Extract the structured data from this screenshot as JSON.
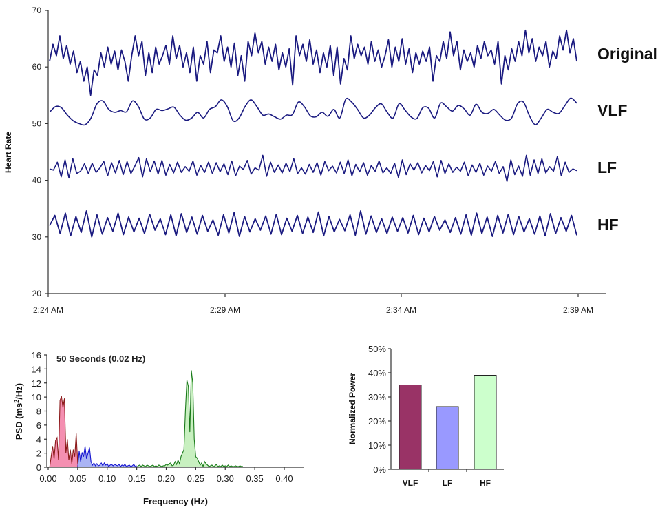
{
  "chart_data": [
    {
      "type": "line",
      "ylabel": "Heart Rate",
      "ylim": [
        20,
        70
      ],
      "yticks": [
        "20",
        "30",
        "40",
        "50",
        "60",
        "70"
      ],
      "xlim": [
        "2:24 AM",
        "2:39 AM"
      ],
      "xticks": [
        "2:24 AM",
        "2:29 AM",
        "2:34 AM",
        "2:39 AM"
      ],
      "line_color": "#1a1a80",
      "series": [
        {
          "name": "Original",
          "values": [
            61,
            64,
            62,
            65.5,
            61.5,
            63.8,
            60.5,
            62.8,
            59,
            61,
            57.5,
            60,
            55,
            59.5,
            58.5,
            62.5,
            60,
            63.5,
            60.5,
            62.8,
            59.5,
            63,
            61,
            57.5,
            62,
            65.5,
            62,
            64.5,
            58.5,
            62.5,
            59,
            63.5,
            60.5,
            62,
            63.8,
            60.5,
            65.5,
            61.5,
            63.8,
            60,
            62.5,
            59,
            63.5,
            57.5,
            62,
            60.5,
            64.5,
            59,
            63,
            62.5,
            65.5,
            61,
            63.5,
            60,
            64.2,
            58.5,
            62,
            57.5,
            64.5,
            62,
            66,
            62.5,
            64.5,
            60.5,
            63.5,
            61,
            64,
            59.5,
            62.5,
            60,
            63.2,
            56.8,
            65.5,
            62,
            64,
            61,
            64.8,
            60.5,
            63,
            59,
            62.5,
            60,
            63.8,
            58.5,
            63.5,
            57,
            61.5,
            59.5,
            65.5,
            61.5,
            64,
            62,
            63.5,
            60.5,
            64.5,
            61,
            63,
            60,
            62,
            64.8,
            60,
            63.5,
            61,
            65,
            60.5,
            63.2,
            59,
            62.5,
            60.5,
            62.8,
            61,
            63.5,
            57.5,
            62,
            61,
            64.5,
            61.5,
            66.2,
            62,
            64.5,
            59.5,
            63,
            61,
            62.5,
            60,
            63.8,
            61.5,
            64.5,
            62,
            63,
            60.5,
            64.5,
            57,
            62,
            59.5,
            63.2,
            61,
            64.5,
            62,
            66.5,
            62.5,
            65,
            61,
            63.5,
            62,
            64.5,
            60,
            62.8,
            61.5,
            65.5,
            63,
            66.5,
            62.5,
            65,
            61
          ]
        },
        {
          "name": "VLF",
          "values": [
            52,
            53,
            52.8,
            51.5,
            50.5,
            50,
            49.8,
            51,
            53.5,
            54,
            52.5,
            52,
            52.3,
            52.1,
            54,
            53,
            50.8,
            51,
            52.5,
            52.3,
            52.6,
            52.9,
            51.5,
            50.6,
            51,
            52,
            51,
            52.5,
            53,
            54.2,
            53,
            50.5,
            51,
            53,
            54.2,
            53,
            51.5,
            51.7,
            51.2,
            50.8,
            51.5,
            51.6,
            53.8,
            53,
            51.4,
            51.2,
            52,
            51.3,
            52.5,
            51,
            54.3,
            53.8,
            52.5,
            51,
            51.5,
            52.8,
            53.5,
            52,
            51,
            53.5,
            52.4,
            51.2,
            50.9,
            52.8,
            52.7,
            51,
            53.6,
            53,
            52.2,
            53.2,
            52.6,
            51.5,
            53.4,
            52,
            51.8,
            52.5,
            51.5,
            50.6,
            51,
            53.5,
            53.8,
            51.4,
            49.8,
            51,
            52.5,
            52,
            51.8,
            53.2,
            54.5,
            53.6
          ]
        },
        {
          "name": "LF",
          "values": [
            42,
            41.8,
            43.2,
            40.6,
            43.6,
            40.4,
            43.8,
            41.2,
            41.6,
            42.9,
            41.2,
            43,
            41.4,
            42.2,
            43.3,
            40.8,
            43.1,
            41.3,
            43.5,
            41,
            43.3,
            41.2,
            42.5,
            44,
            40.6,
            43.8,
            41.5,
            43.4,
            41.1,
            43.5,
            40.9,
            42.8,
            41.3,
            43.2,
            41.4,
            42.4,
            41.6,
            43.4,
            40.9,
            42.6,
            41.4,
            43.2,
            41.2,
            43.1,
            41.5,
            42.9,
            41,
            43.4,
            40.8,
            42.5,
            41.9,
            43.5,
            41.1,
            42.2,
            41.8,
            44.4,
            40.7,
            43.2,
            41.4,
            42.7,
            41.3,
            43,
            41.5,
            43.8,
            41.2,
            42.2,
            41.1,
            42.8,
            41.4,
            43.1,
            40.9,
            43.3,
            41.7,
            42.5,
            41.3,
            43.2,
            41.2,
            43.6,
            40.8,
            42.8,
            41.5,
            43.1,
            40.9,
            42.6,
            41.6,
            43.4,
            41.3,
            42.2,
            41.2,
            43,
            40.5,
            43.6,
            41,
            42.9,
            41.8,
            43.1,
            41.3,
            42.6,
            41.7,
            43.3,
            40.6,
            43.5,
            41.2,
            42.9,
            41.4,
            42.3,
            41.6,
            43.2,
            40.8,
            42.7,
            41.4,
            43,
            40.9,
            42.5,
            41.6,
            43.3,
            41.2,
            42.4,
            39.8,
            43.6,
            41,
            42.5,
            40.7,
            44.4,
            40.9,
            43.6,
            41.2,
            43.8,
            41.3,
            42.4,
            41.6,
            44.2,
            40.8,
            43.2,
            41.4,
            42,
            41.7
          ]
        },
        {
          "name": "HF",
          "values": [
            32,
            33.8,
            30.6,
            34.2,
            30.2,
            33.6,
            30.8,
            34.6,
            30,
            33.9,
            30.5,
            33.4,
            31,
            34.2,
            30.4,
            33.5,
            30.9,
            33.3,
            30.6,
            34,
            31.2,
            33.2,
            30.4,
            33.9,
            30.2,
            34.1,
            30.8,
            33.5,
            30.5,
            33.8,
            31,
            33,
            30.3,
            33.9,
            30.7,
            34.3,
            30.1,
            33.6,
            30.9,
            33.2,
            31.2,
            33.7,
            30.5,
            34,
            30.4,
            33.3,
            31,
            33.8,
            30.6,
            33.5,
            30.8,
            34.4,
            30.2,
            33.6,
            30.9,
            33.1,
            31.1,
            33.9,
            30.3,
            34.6,
            30.5,
            33.7,
            30.8,
            33.2,
            30.6,
            33.5,
            31,
            33.4,
            30.7,
            33.8,
            30.4,
            33.3,
            30.9,
            33.6,
            31.2,
            33,
            30.8,
            33.4,
            30.5,
            33.9,
            30.3,
            34.2,
            30.6,
            33.5,
            30.1,
            33.8,
            30.7,
            34,
            30.4,
            33.6,
            30.9,
            33.2,
            30.5,
            33.7,
            30.2,
            34.1,
            30.6,
            33.4,
            31,
            33.8,
            30.3
          ]
        }
      ]
    },
    {
      "type": "area",
      "title": "50 Seconds (0.02 Hz)",
      "xlabel": "Frequency (Hz)",
      "ylabel_main": "PSD (ms",
      "ylabel_sup": "2",
      "ylabel_tail": "/Hz)",
      "xlim": [
        0,
        0.43
      ],
      "ylim": [
        0,
        16
      ],
      "xticks": [
        "0.00",
        "0.05",
        "0.10",
        "0.15",
        "0.20",
        "0.25",
        "0.30",
        "0.35",
        "0.40"
      ],
      "yticks": [
        "0",
        "2",
        "4",
        "6",
        "8",
        "10",
        "12",
        "14",
        "16"
      ],
      "freq_step": 0.0025,
      "bands": [
        {
          "name": "VLF",
          "line": "#8b1a1a",
          "fill": "#f48fb1",
          "freq_start": 0.005,
          "values": [
            1.5,
            3,
            1.2,
            3.8,
            4.2,
            1,
            9.5,
            10.1,
            8.5,
            9.8,
            2,
            4,
            1,
            2.5,
            0.5,
            2.5,
            1.5,
            4.8,
            0.5
          ]
        },
        {
          "name": "LF",
          "line": "#1414d0",
          "fill": "#aab4f4",
          "freq_start": 0.0525,
          "values": [
            2.3,
            0.8,
            2.1,
            1.5,
            3,
            1.2,
            2,
            2.8,
            0.8,
            0.3,
            0.6,
            0.2,
            0.5,
            0.2,
            0.3,
            0.6,
            0.2,
            0.6,
            0.3,
            0.5,
            0.1,
            0.3,
            0.4,
            0.2,
            0.4,
            0.3,
            0.2,
            0.4,
            0.1,
            0.3,
            0.2,
            0.4,
            0.1,
            0.2,
            0.3,
            0.1,
            0.2,
            0.4,
            0.1,
            0.2
          ]
        },
        {
          "name": "HF",
          "line": "#1a7a1a",
          "fill": "#c8f0c0",
          "freq_start": 0.1525,
          "values": [
            0.2,
            0.3,
            0.1,
            0.3,
            0.2,
            0.1,
            0.3,
            0.2,
            0.1,
            0.2,
            0.3,
            0.1,
            0.2,
            0.1,
            0.3,
            0.2,
            0.1,
            0.2,
            0.2,
            0.4,
            0.3,
            0.5,
            0.6,
            0.2,
            0.3,
            0.8,
            0.4,
            1,
            0.5,
            1.5,
            2,
            2.5,
            8,
            12.4,
            11.5,
            5,
            13.8,
            12,
            4,
            1.5,
            1.3,
            0.8,
            0.3,
            0.6,
            0.1,
            0.8,
            0.5,
            0.3,
            0.1,
            0.2,
            0.3,
            0.1,
            0.2,
            0.4,
            0.1,
            0.2,
            0.1,
            0.3,
            0.1,
            0.2,
            0.1,
            0.3,
            0.1,
            0.2,
            0.1,
            0.1,
            0.2,
            0.1,
            0.1,
            0.2,
            0.1,
            0.1
          ]
        }
      ]
    },
    {
      "type": "bar",
      "ylabel": "Normalized Power",
      "ylim": [
        0,
        50
      ],
      "yticks": [
        "0%",
        "10%",
        "20%",
        "30%",
        "40%",
        "50%"
      ],
      "categories": [
        "VLF",
        "LF",
        "HF"
      ],
      "values": [
        35,
        26,
        39
      ],
      "colors": [
        "#993366",
        "#9999ff",
        "#ccffcc"
      ]
    }
  ]
}
